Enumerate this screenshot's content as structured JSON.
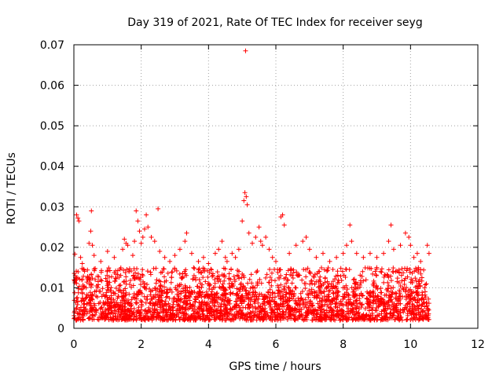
{
  "chart_data": {
    "type": "scatter",
    "title": "Day 319 of 2021, Rate Of TEC Index for receiver seyg",
    "xlabel": "GPS time / hours",
    "ylabel": "ROTI / TECUs",
    "xlim": [
      0,
      12
    ],
    "ylim": [
      0,
      0.07
    ],
    "xticks": [
      0,
      2,
      4,
      6,
      8,
      10,
      12
    ],
    "yticks": [
      0,
      0.01,
      0.02,
      0.03,
      0.04,
      0.05,
      0.06,
      0.07
    ],
    "xtick_labels": [
      "0",
      "2",
      "4",
      "6",
      "8",
      "10",
      "12"
    ],
    "ytick_labels": [
      "0",
      "0.01",
      "0.02",
      "0.03",
      "0.04",
      "0.05",
      "0.06",
      "0.07"
    ],
    "grid": true,
    "marker": "+",
    "series": [
      {
        "name": "ROTI",
        "color": "#ff0000",
        "data_range_hours": [
          0,
          10.55
        ],
        "typical_range": [
          0.002,
          0.015
        ],
        "points": [
          [
            0.03,
            0.0183
          ],
          [
            0.05,
            0.0125
          ],
          [
            0.08,
            0.028
          ],
          [
            0.12,
            0.0272
          ],
          [
            0.15,
            0.0265
          ],
          [
            0.2,
            0.0175
          ],
          [
            0.25,
            0.016
          ],
          [
            0.3,
            0.0145
          ],
          [
            0.45,
            0.021
          ],
          [
            0.5,
            0.024
          ],
          [
            0.52,
            0.029
          ],
          [
            0.55,
            0.0205
          ],
          [
            0.6,
            0.018
          ],
          [
            0.8,
            0.0165
          ],
          [
            1.0,
            0.019
          ],
          [
            1.2,
            0.0175
          ],
          [
            1.45,
            0.0195
          ],
          [
            1.5,
            0.022
          ],
          [
            1.55,
            0.021
          ],
          [
            1.6,
            0.0205
          ],
          [
            1.75,
            0.018
          ],
          [
            1.8,
            0.0215
          ],
          [
            1.85,
            0.029
          ],
          [
            1.9,
            0.0265
          ],
          [
            1.95,
            0.024
          ],
          [
            2.0,
            0.021
          ],
          [
            2.05,
            0.0225
          ],
          [
            2.1,
            0.0245
          ],
          [
            2.15,
            0.028
          ],
          [
            2.2,
            0.025
          ],
          [
            2.3,
            0.0225
          ],
          [
            2.4,
            0.0215
          ],
          [
            2.5,
            0.0295
          ],
          [
            2.55,
            0.019
          ],
          [
            2.7,
            0.0175
          ],
          [
            2.85,
            0.0165
          ],
          [
            3.0,
            0.018
          ],
          [
            3.15,
            0.0195
          ],
          [
            3.3,
            0.0215
          ],
          [
            3.35,
            0.0235
          ],
          [
            3.5,
            0.0185
          ],
          [
            3.7,
            0.0165
          ],
          [
            3.85,
            0.0175
          ],
          [
            4.0,
            0.016
          ],
          [
            4.2,
            0.0185
          ],
          [
            4.3,
            0.0195
          ],
          [
            4.4,
            0.0215
          ],
          [
            4.5,
            0.0175
          ],
          [
            4.55,
            0.0165
          ],
          [
            4.7,
            0.0185
          ],
          [
            4.8,
            0.0175
          ],
          [
            4.9,
            0.0195
          ],
          [
            5.0,
            0.0265
          ],
          [
            5.05,
            0.0315
          ],
          [
            5.08,
            0.0335
          ],
          [
            5.1,
            0.0685
          ],
          [
            5.12,
            0.0325
          ],
          [
            5.15,
            0.0305
          ],
          [
            5.2,
            0.0235
          ],
          [
            5.3,
            0.021
          ],
          [
            5.4,
            0.0225
          ],
          [
            5.5,
            0.025
          ],
          [
            5.55,
            0.0215
          ],
          [
            5.6,
            0.0205
          ],
          [
            5.7,
            0.0225
          ],
          [
            5.8,
            0.0195
          ],
          [
            5.9,
            0.0175
          ],
          [
            6.0,
            0.0165
          ],
          [
            6.15,
            0.0275
          ],
          [
            6.2,
            0.028
          ],
          [
            6.25,
            0.0255
          ],
          [
            6.4,
            0.0185
          ],
          [
            6.6,
            0.0205
          ],
          [
            6.8,
            0.0215
          ],
          [
            6.9,
            0.0225
          ],
          [
            7.0,
            0.0195
          ],
          [
            7.2,
            0.0175
          ],
          [
            7.4,
            0.0185
          ],
          [
            7.6,
            0.0165
          ],
          [
            7.8,
            0.0175
          ],
          [
            8.0,
            0.0185
          ],
          [
            8.1,
            0.0205
          ],
          [
            8.2,
            0.0255
          ],
          [
            8.25,
            0.0215
          ],
          [
            8.4,
            0.0185
          ],
          [
            8.6,
            0.0175
          ],
          [
            8.8,
            0.0185
          ],
          [
            9.0,
            0.0175
          ],
          [
            9.2,
            0.0185
          ],
          [
            9.35,
            0.0215
          ],
          [
            9.42,
            0.0255
          ],
          [
            9.5,
            0.0195
          ],
          [
            9.7,
            0.0205
          ],
          [
            9.85,
            0.0235
          ],
          [
            9.95,
            0.0225
          ],
          [
            10.0,
            0.0205
          ],
          [
            10.1,
            0.0175
          ],
          [
            10.2,
            0.0185
          ],
          [
            10.3,
            0.0165
          ],
          [
            10.5,
            0.0205
          ],
          [
            10.55,
            0.0185
          ]
        ]
      }
    ]
  }
}
